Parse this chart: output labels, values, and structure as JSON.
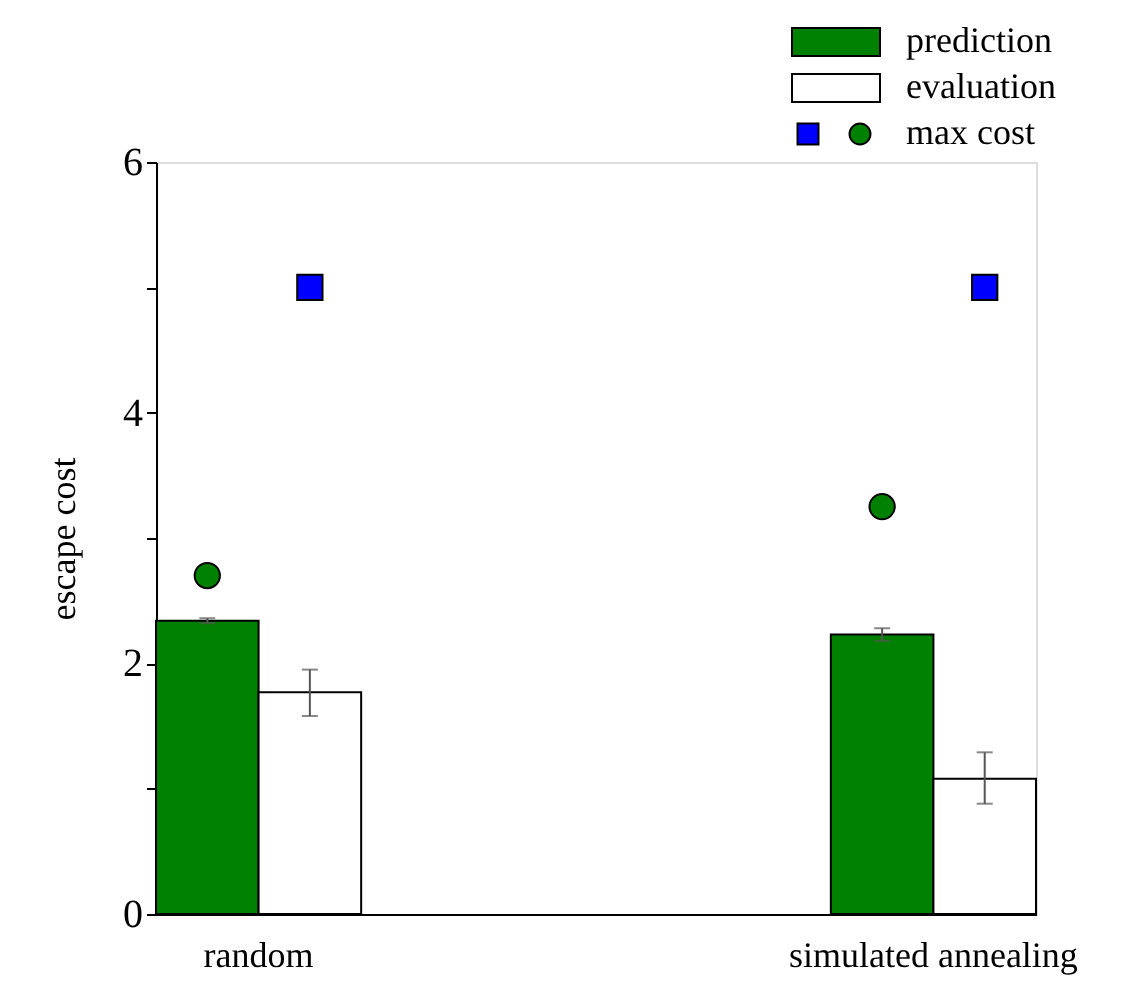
{
  "chart_data": {
    "type": "bar",
    "ylabel": "escape cost",
    "categories": [
      "random",
      "simulated annealing"
    ],
    "ylim": [
      0,
      6
    ],
    "yticks": [
      0,
      {
        "value": 1,
        "label": null
      },
      2,
      {
        "value": 3,
        "label": null
      },
      4,
      {
        "value": 5,
        "label": null
      },
      6
    ],
    "grid": false,
    "legend": "top right",
    "series": [
      {
        "name": "prediction",
        "color": "#008000",
        "values": [
          2.34,
          2.23
        ],
        "errors": [
          0.02,
          0.05
        ]
      },
      {
        "name": "evaluation",
        "color": "#ffffff",
        "values": [
          1.77,
          1.08
        ],
        "errors": [
          [
            1.58,
            1.95
          ],
          [
            0.88,
            1.29
          ]
        ]
      },
      {
        "name": "max cost",
        "type": "scatter",
        "marker": "circle",
        "color": "#008000",
        "x": [
          "random",
          "simulated annealing"
        ],
        "values": [
          2.7,
          3.25
        ]
      },
      {
        "type": "scatter",
        "marker": "square",
        "color": "#0000ff",
        "x": [
          "random",
          "simulated annealing"
        ],
        "values": [
          5.0,
          5.0
        ]
      }
    ]
  }
}
